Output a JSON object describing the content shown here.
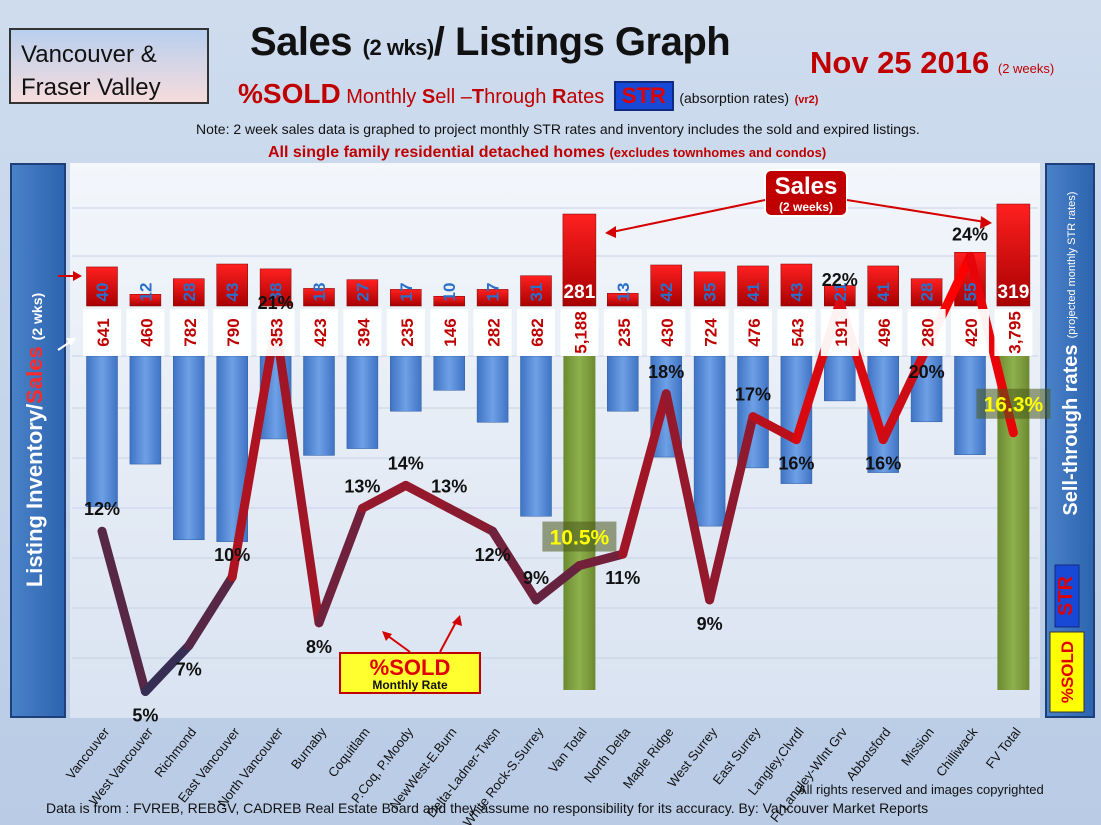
{
  "header": {
    "region_line1": "Vancouver &",
    "region_line2": "Fraser Valley",
    "title_main": "Sales ",
    "title_small": "(2 wks)",
    "title_tail": "/ Listings Graph",
    "date_main": "Nov 25 2016",
    "date_small": "(2 weeks)",
    "subtitle_sold": "%SOLD",
    "subtitle_rest": " Monthly ",
    "subtitle_s": "S",
    "subtitle_ell": "ell –",
    "subtitle_t": "T",
    "subtitle_hrough": "hrough ",
    "subtitle_r": "R",
    "subtitle_ates": "ates",
    "str_badge": "STR",
    "absorption": "(absorption rates)",
    "version": "(vr2)",
    "note": "Note: 2 week sales data is graphed to project monthly STR rates and inventory includes the sold and expired listings.",
    "emphasis_main": "All single family residential detached homes",
    "emphasis_small": "(excludes townhomes and condos)"
  },
  "left_axis": {
    "label_part1": "Listing Inventory/",
    "label_part2": "Sales",
    "label_part3": "(2 wks)"
  },
  "right_axis": {
    "label_main": "Sell-through rates",
    "label_small": "(projected monthly STR rates)",
    "str_badge": "STR",
    "sold_badge": "%SOLD"
  },
  "callouts": {
    "sales_title": "Sales",
    "sales_sub": "(2 weeks)",
    "sold_box_title": "%SOLD",
    "sold_box_sub": "Monthly Rate"
  },
  "footer": {
    "rights": "All rights reserved and  images copyrighted",
    "source": "Data is from : FVREB, REBGV, CADREB Real Estate Board and they assume no responsibility for its accuracy.  By: Vancouver Market Reports"
  },
  "colors": {
    "sales_bar": "#d40000",
    "inventory_bar": "#5b8fd8",
    "total_bar": "#7a9a3c",
    "str_line_high": "#ff0000",
    "str_line_low": "#2b3158"
  },
  "chart_data": {
    "type": "bar",
    "categories": [
      "Vancouver",
      "West Vancouver",
      "Richmond",
      "East Vancouver",
      "North Vancouver",
      "Burnaby",
      "Coquitlam",
      "P.Coq, P.Moody",
      "NewWest-E.Burn",
      "Delta-Ladner-Twsn",
      "White Rock-S.Surrey",
      "Van Total",
      "North Delta",
      "Maple Ridge",
      "West Surrey",
      "East Surrey",
      "Langley,Clvrdl",
      "Ft Langley-Wlnt Grv",
      "Abbotsford",
      "Mission",
      "Chilliwack",
      "FV Total"
    ],
    "series": [
      {
        "name": "Sales",
        "values": [
          40,
          12,
          28,
          43,
          38,
          18,
          27,
          17,
          10,
          17,
          31,
          281,
          13,
          42,
          35,
          41,
          43,
          21,
          41,
          28,
          55,
          319
        ]
      },
      {
        "name": "Listing Inventory",
        "values": [
          641,
          460,
          782,
          790,
          353,
          423,
          394,
          235,
          146,
          282,
          682,
          5188,
          235,
          430,
          724,
          476,
          543,
          191,
          496,
          280,
          420,
          3795
        ]
      },
      {
        "name": "%SOLD Monthly Rate",
        "values": [
          12,
          5,
          7,
          10,
          21,
          8,
          13,
          14,
          13,
          12,
          9,
          null,
          11,
          18,
          9,
          17,
          16,
          22,
          16,
          20,
          24,
          null
        ]
      }
    ],
    "str_labels": [
      "12%",
      "5%",
      "7%",
      "10%",
      "21%",
      "8%",
      "13%",
      "14%",
      "13%",
      "12%",
      "9%",
      "10.5%",
      "11%",
      "18%",
      "9%",
      "17%",
      "16%",
      "22%",
      "16%",
      "20%",
      "24%",
      "16.3%"
    ],
    "sales_labels": [
      "40",
      "12",
      "28",
      "43",
      "38",
      "18",
      "27",
      "17",
      "10",
      "17",
      "31",
      "281",
      "13",
      "42",
      "35",
      "41",
      "43",
      "21",
      "41",
      "28",
      "55",
      "319"
    ],
    "inventory_labels": [
      "641",
      "460",
      "782",
      "790",
      "353",
      "423",
      "394",
      "235",
      "146",
      "282",
      "682",
      "5,188",
      "235",
      "430",
      "724",
      "476",
      "543",
      "191",
      "496",
      "280",
      "420",
      "3,795"
    ],
    "totals": [
      {
        "category": "Van Total",
        "str": "10.5%"
      },
      {
        "category": "FV Total",
        "str": "16.3%"
      }
    ],
    "xlabel": "",
    "ylabel": "Listing Inventory/ Sales (2 wks)",
    "y2label": "Sell-through rates",
    "legend": "none",
    "grid": true
  }
}
